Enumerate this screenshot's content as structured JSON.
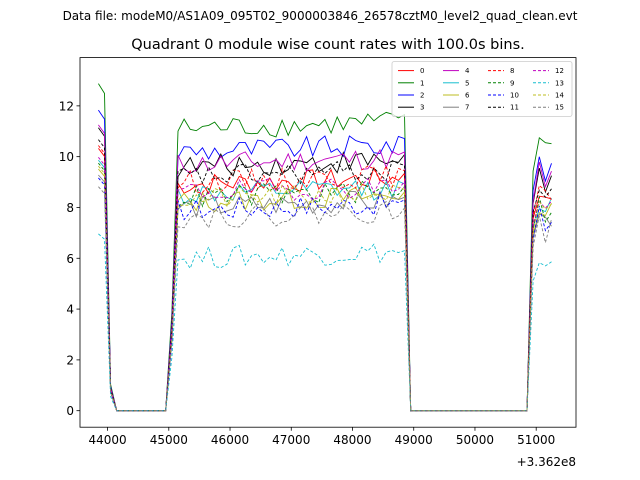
{
  "figure": {
    "suptitle": "Data file: modeM0/AS1A09_095T02_9000003846_26578cztM0_level2_quad_clean.evt"
  },
  "chart_data": {
    "type": "line",
    "title": "Quadrant 0 module wise count rates with 100.0s bins.",
    "xlabel": "",
    "ylabel": "",
    "x_offset_label": "+3.362e8",
    "xlim": [
      43550,
      51650
    ],
    "ylim": [
      -0.65,
      13.9
    ],
    "xticks": [
      44000,
      45000,
      46000,
      47000,
      48000,
      49000,
      50000,
      51000
    ],
    "xtick_labels": [
      "44000",
      "45000",
      "46000",
      "47000",
      "48000",
      "49000",
      "50000",
      "51000"
    ],
    "yticks": [
      0,
      2,
      4,
      6,
      8,
      10,
      12
    ],
    "ytick_labels": [
      "0",
      "2",
      "4",
      "6",
      "8",
      "10",
      "12"
    ],
    "grid": false,
    "legend_location": "upper right",
    "legend_columns": 4,
    "segments": [
      {
        "start": 43850,
        "end": 44150,
        "decays_to_zero": true
      },
      {
        "start": 44150,
        "end": 44950,
        "zero": true
      },
      {
        "start": 44950,
        "end": 48850,
        "on": true
      },
      {
        "start": 48850,
        "end": 48950,
        "decays_to_zero": true
      },
      {
        "start": 48950,
        "end": 50850,
        "zero": true
      },
      {
        "start": 50850,
        "end": 51250,
        "on": true
      }
    ],
    "bin_seconds": 100,
    "series": [
      {
        "name": "0",
        "color": "#ff0000",
        "dash": "solid",
        "level": 8.9
      },
      {
        "name": "1",
        "color": "#008000",
        "dash": "solid",
        "level": 11.1
      },
      {
        "name": "2",
        "color": "#0000ff",
        "dash": "solid",
        "level": 10.2
      },
      {
        "name": "3",
        "color": "#000000",
        "dash": "solid",
        "level": 9.6
      },
      {
        "name": "4",
        "color": "#c000c0",
        "dash": "solid",
        "level": 9.7
      },
      {
        "name": "5",
        "color": "#17becf",
        "dash": "solid",
        "level": 8.5
      },
      {
        "name": "6",
        "color": "#bcbd22",
        "dash": "solid",
        "level": 8.2
      },
      {
        "name": "7",
        "color": "#7f7f7f",
        "dash": "solid",
        "level": 8.0
      },
      {
        "name": "8",
        "color": "#ff0000",
        "dash": "dashed",
        "level": 9.0
      },
      {
        "name": "9",
        "color": "#008000",
        "dash": "dashed",
        "level": 8.4
      },
      {
        "name": "10",
        "color": "#0000ff",
        "dash": "dashed",
        "level": 7.9
      },
      {
        "name": "11",
        "color": "#000000",
        "dash": "dashed",
        "level": 9.2
      },
      {
        "name": "12",
        "color": "#c000c0",
        "dash": "dashed",
        "level": 8.6
      },
      {
        "name": "13",
        "color": "#17becf",
        "dash": "dashed",
        "level": 6.0
      },
      {
        "name": "14",
        "color": "#bcbd22",
        "dash": "dashed",
        "level": 8.3
      },
      {
        "name": "15",
        "color": "#7f7f7f",
        "dash": "dashed",
        "level": 7.6
      }
    ]
  }
}
